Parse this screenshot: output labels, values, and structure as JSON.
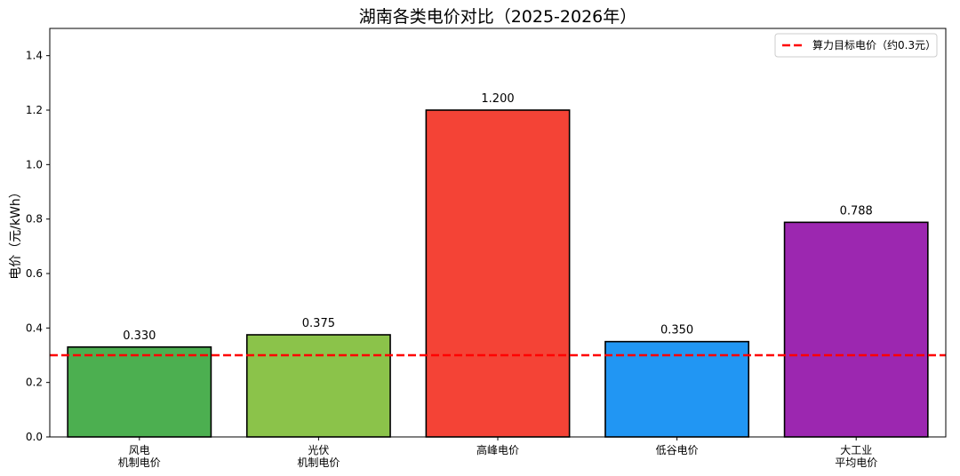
{
  "chart_data": {
    "type": "bar",
    "title": "湖南各类电价对比（2025-2026年）",
    "xlabel": "",
    "ylabel": "电价（元/kWh）",
    "ylim": [
      0,
      1.5
    ],
    "yticks": [
      0.0,
      0.2,
      0.4,
      0.6,
      0.8,
      1.0,
      1.2,
      1.4
    ],
    "ytick_labels": [
      "0.0",
      "0.2",
      "0.4",
      "0.6",
      "0.8",
      "1.0",
      "1.2",
      "1.4"
    ],
    "categories": [
      [
        "风电",
        "机制电价"
      ],
      [
        "光伏",
        "机制电价"
      ],
      [
        "高峰电价"
      ],
      [
        "低谷电价"
      ],
      [
        "大工业",
        "平均电价"
      ]
    ],
    "values": [
      0.33,
      0.375,
      1.2,
      0.35,
      0.788
    ],
    "value_labels": [
      "0.330",
      "0.375",
      "1.200",
      "0.350",
      "0.788"
    ],
    "bar_colors": [
      "#4caf50",
      "#8bc34a",
      "#f44336",
      "#2196f3",
      "#9c27b0"
    ],
    "reference_line": {
      "value": 0.3,
      "label": "算力目标电价（约0.3元）",
      "color": "#ff0000",
      "style": "dashed"
    },
    "legend_position": "top-right",
    "grid": false
  }
}
